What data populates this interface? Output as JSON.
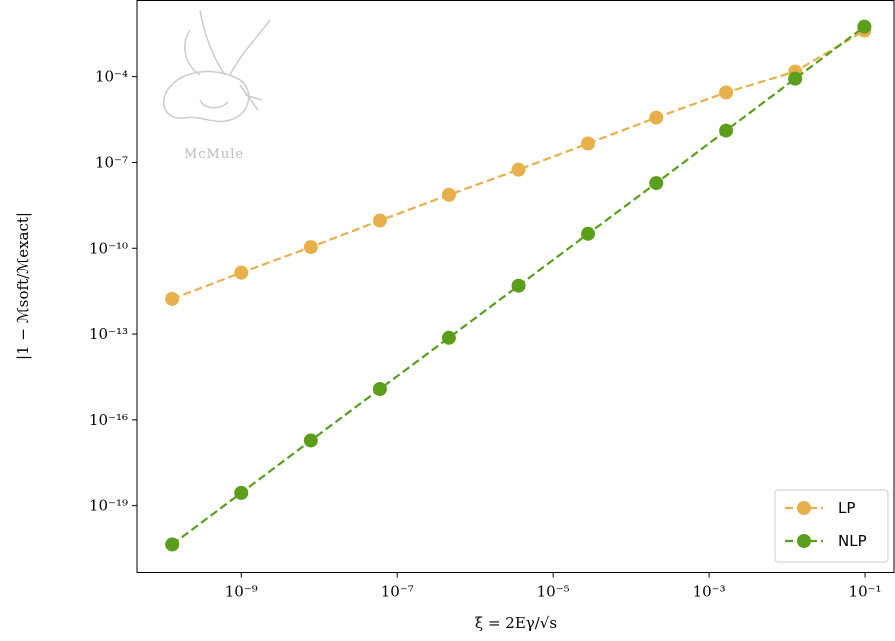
{
  "chart_data": {
    "type": "line",
    "log_x": true,
    "log_y": true,
    "x_label": "ξ = 2Eγ/√s",
    "y_label": "|1 − ℳsoft/ℳexact|",
    "logo_text": "McMule",
    "x": [
      1.3e-10,
      1e-09,
      7.8e-09,
      6e-08,
      4.6e-07,
      3.6e-06,
      2.8e-05,
      0.00021,
      0.00165,
      0.0127,
      0.098
    ],
    "series": [
      {
        "name": "LP",
        "color": "#e8b04a",
        "values": [
          1.7e-12,
          1.4e-11,
          1.1e-10,
          9.3e-10,
          7.4e-09,
          5.6e-08,
          4.6e-07,
          3.7e-06,
          2.8e-05,
          0.00015,
          0.0041
        ]
      },
      {
        "name": "NLP",
        "color": "#5a9e1c",
        "values": [
          4.4e-21,
          2.8e-19,
          1.9e-17,
          1.2e-15,
          7.4e-14,
          4.9e-12,
          3.2e-10,
          1.9e-08,
          1.3e-06,
          8.5e-05,
          0.0056
        ]
      }
    ],
    "xlim": [
      4.6e-11,
      0.235
    ],
    "ylim": [
      4.6e-22,
      0.046
    ],
    "xticks": [
      {
        "value": 1e-09,
        "label": "10⁻⁹"
      },
      {
        "value": 1e-07,
        "label": "10⁻⁷"
      },
      {
        "value": 1e-05,
        "label": "10⁻⁵"
      },
      {
        "value": 0.001,
        "label": "10⁻³"
      },
      {
        "value": 0.1,
        "label": "10⁻¹"
      }
    ],
    "yticks": [
      {
        "value": 1e-19,
        "label": "10⁻¹⁹"
      },
      {
        "value": 1e-16,
        "label": "10⁻¹⁶"
      },
      {
        "value": 1e-13,
        "label": "10⁻¹³"
      },
      {
        "value": 1e-10,
        "label": "10⁻¹⁰"
      },
      {
        "value": 1e-07,
        "label": "10⁻⁷"
      },
      {
        "value": 0.0001,
        "label": "10⁻⁴"
      }
    ],
    "legend": "lower right",
    "grid": false
  }
}
